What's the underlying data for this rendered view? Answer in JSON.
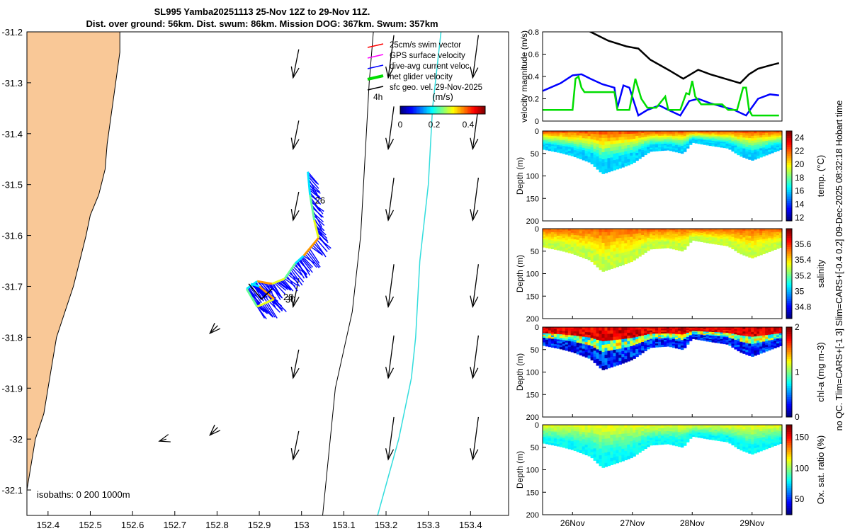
{
  "title": {
    "line1": "SL995 Yamba20251113 25-Nov 12Z to 29-Nov 11Z.",
    "line2": "Dist. over ground: 56km. Dist. swum: 86km. Mission DOG: 367km. Swum: 357km"
  },
  "side_note": "no QC. Tlim=CARS+[-1 3] Slim=CARS+[-0.4 0.2] 09-Dec-2025 08:32:18 Hobart time",
  "colors": {
    "land": "#f9c897",
    "coast": "#000000",
    "isobath_200": "#000000",
    "isobath_1000": "#33dddd",
    "dive_avg": "#0000ff",
    "net_glider": "#00dd00",
    "gps": "#ff00ff",
    "swim": "#ff0000"
  },
  "chart_data": [
    {
      "type": "map",
      "id": "track-map",
      "xlim": [
        152.35,
        153.49
      ],
      "ylim": [
        -32.15,
        -31.2
      ],
      "xticks": [
        152.4,
        152.5,
        152.6,
        152.7,
        152.8,
        152.9,
        153,
        153.1,
        153.2,
        153.3,
        153.4
      ],
      "yticks": [
        -31.2,
        -31.3,
        -31.4,
        -31.5,
        -31.6,
        -31.7,
        -31.8,
        -31.9,
        -32,
        -32.1
      ],
      "legend": {
        "location": "top-right",
        "entries": [
          {
            "label": "25cm/s swim vector",
            "color": "#ff0000"
          },
          {
            "label": "GPS surface velocity",
            "color": "#ff00ff"
          },
          {
            "label": "dive-avg current veloc.",
            "color": "#0000ff"
          },
          {
            "label": "net glider velocity",
            "color": "#00dd00"
          },
          {
            "label": "sfc geo. vel. 29-Nov-2025",
            "color": "#000000"
          }
        ],
        "scale_label": "4h"
      },
      "colorbar": {
        "label": "(m/s)",
        "ticks": [
          "0",
          "0.2",
          "0.4"
        ],
        "range": [
          0,
          0.5
        ]
      },
      "isobath_label": "isobaths: 0   200  1000m",
      "day_labels": [
        {
          "text": "26",
          "lon": 153.015,
          "lat": -31.53
        },
        {
          "text": "28",
          "lon": 152.94,
          "lat": -31.72
        },
        {
          "text": "30",
          "lon": 152.945,
          "lat": -31.725
        }
      ],
      "glider_track": [
        [
          153.015,
          -31.475
        ],
        [
          153.02,
          -31.52
        ],
        [
          153.03,
          -31.57
        ],
        [
          153.04,
          -31.605
        ],
        [
          153.005,
          -31.64
        ],
        [
          152.985,
          -31.655
        ],
        [
          152.96,
          -31.685
        ],
        [
          152.93,
          -31.695
        ],
        [
          152.895,
          -31.69
        ],
        [
          152.87,
          -31.705
        ],
        [
          152.895,
          -31.74
        ],
        [
          152.935,
          -31.725
        ],
        [
          152.9,
          -31.7
        ],
        [
          152.88,
          -31.695
        ]
      ]
    },
    {
      "type": "line",
      "id": "velocity-magnitude",
      "title": "",
      "xlabel": "",
      "ylabel": "velocity magnitude (m/s)",
      "xlim": [
        25.5,
        29.5
      ],
      "ylim": [
        0,
        0.8
      ],
      "yticks": [
        0,
        0.2,
        0.4,
        0.6,
        0.8
      ],
      "series": [
        {
          "name": "sfc geo. vel.",
          "color": "#000000",
          "x": [
            26.0,
            26.3,
            26.6,
            26.9,
            27.1,
            27.3,
            27.6,
            27.85,
            28.1,
            28.3,
            28.55,
            28.8,
            28.95,
            29.1,
            29.3,
            29.45
          ],
          "y": [
            0.88,
            0.8,
            0.72,
            0.67,
            0.65,
            0.55,
            0.46,
            0.38,
            0.46,
            0.42,
            0.38,
            0.34,
            0.42,
            0.47,
            0.5,
            0.52
          ]
        },
        {
          "name": "dive-avg current veloc.",
          "color": "#0000ff",
          "x": [
            25.5,
            25.8,
            26.0,
            26.15,
            26.3,
            26.5,
            26.7,
            26.75,
            26.85,
            26.95,
            27.1,
            27.25,
            27.45,
            27.6,
            27.8,
            27.95,
            28.1,
            28.3,
            28.5,
            28.7,
            28.9,
            29.1,
            29.3,
            29.45
          ],
          "y": [
            0.27,
            0.34,
            0.41,
            0.42,
            0.38,
            0.33,
            0.3,
            0.12,
            0.32,
            0.3,
            0.05,
            0.1,
            0.14,
            0.1,
            0.05,
            0.18,
            0.2,
            0.16,
            0.13,
            0.1,
            0.05,
            0.2,
            0.24,
            0.23
          ]
        },
        {
          "name": "net glider velocity",
          "color": "#00dd00",
          "x": [
            25.5,
            25.8,
            26.0,
            26.05,
            26.1,
            26.15,
            26.2,
            26.35,
            26.55,
            26.7,
            26.75,
            26.8,
            26.95,
            27.05,
            27.15,
            27.25,
            27.4,
            27.55,
            27.6,
            27.65,
            27.8,
            27.9,
            27.95,
            28.0,
            28.05,
            28.15,
            28.3,
            28.5,
            28.6,
            28.75,
            28.85,
            28.9,
            28.95,
            29.0,
            29.3,
            29.45
          ],
          "y": [
            0.1,
            0.1,
            0.1,
            0.38,
            0.4,
            0.3,
            0.26,
            0.26,
            0.26,
            0.26,
            0.1,
            0.1,
            0.1,
            0.38,
            0.2,
            0.12,
            0.12,
            0.22,
            0.1,
            0.1,
            0.1,
            0.25,
            0.24,
            0.36,
            0.22,
            0.15,
            0.15,
            0.15,
            0.1,
            0.1,
            0.3,
            0.3,
            0.1,
            0.05,
            0.05,
            0.05
          ]
        }
      ]
    },
    {
      "type": "heatmap",
      "id": "temperature-section",
      "ylabel": "Depth (m)",
      "colorbar_label": "temp. (°C)",
      "colorbar_ticks": [
        12,
        14,
        16,
        18,
        20,
        22,
        24
      ],
      "crange": [
        11.5,
        25
      ],
      "ylim": [
        0,
        200
      ],
      "yticks": [
        0,
        50,
        100,
        150,
        200
      ],
      "xlim": [
        25.5,
        29.5
      ],
      "xticks": [
        "26Nov",
        "27Nov",
        "28Nov",
        "29Nov"
      ],
      "profile_days": [
        25.5,
        25.8,
        26.0,
        26.3,
        26.5,
        26.8,
        27.0,
        27.3,
        27.6,
        27.85,
        28.0,
        28.3,
        28.6,
        28.8,
        29.0,
        29.3,
        29.5
      ],
      "profile_depths": [
        40,
        48,
        55,
        70,
        95,
        82,
        72,
        45,
        42,
        50,
        25,
        32,
        38,
        55,
        65,
        50,
        40
      ],
      "surface_value": 22.5,
      "deep_value": 16.0
    },
    {
      "type": "heatmap",
      "id": "salinity-section",
      "ylabel": "Depth (m)",
      "colorbar_label": "salinity",
      "colorbar_ticks": [
        34.8,
        35,
        35.2,
        35.4,
        35.6
      ],
      "crange": [
        34.65,
        35.8
      ],
      "ylim": [
        0,
        200
      ],
      "yticks": [
        0,
        50,
        100,
        150,
        200
      ],
      "xlim": [
        25.5,
        29.5
      ],
      "xticks": [
        "26Nov",
        "27Nov",
        "28Nov",
        "29Nov"
      ],
      "profile_days": [
        25.5,
        25.8,
        26.0,
        26.3,
        26.5,
        26.8,
        27.0,
        27.3,
        27.6,
        27.85,
        28.0,
        28.3,
        28.6,
        28.8,
        29.0,
        29.3,
        29.5
      ],
      "profile_depths": [
        40,
        48,
        55,
        70,
        95,
        82,
        72,
        45,
        42,
        50,
        25,
        32,
        38,
        55,
        65,
        50,
        40
      ],
      "surface_value": 35.55,
      "deep_value": 35.3
    },
    {
      "type": "heatmap",
      "id": "chla-section",
      "ylabel": "Depth (m)",
      "colorbar_label": "chl-a (mg m-3)",
      "colorbar_ticks": [
        0,
        1,
        2
      ],
      "crange": [
        0,
        2
      ],
      "ylim": [
        0,
        200
      ],
      "yticks": [
        0,
        50,
        100,
        150,
        200
      ],
      "xlim": [
        25.5,
        29.5
      ],
      "xticks": [
        "26Nov",
        "27Nov",
        "28Nov",
        "29Nov"
      ],
      "profile_days": [
        25.5,
        25.8,
        26.0,
        26.3,
        26.5,
        26.8,
        27.0,
        27.3,
        27.6,
        27.85,
        28.0,
        28.3,
        28.6,
        28.8,
        29.0,
        29.3,
        29.5
      ],
      "profile_depths": [
        40,
        48,
        55,
        70,
        95,
        82,
        72,
        45,
        42,
        50,
        25,
        32,
        38,
        55,
        65,
        50,
        40
      ],
      "surface_value": 1.95,
      "deep_value": 0.3
    },
    {
      "type": "heatmap",
      "id": "oxygen-section",
      "ylabel": "Depth (m)",
      "colorbar_label": "Ox. sat. ratio (%)",
      "colorbar_ticks": [
        50,
        100,
        150
      ],
      "crange": [
        25,
        170
      ],
      "ylim": [
        0,
        200
      ],
      "yticks": [
        0,
        50,
        100,
        150,
        200
      ],
      "xlim": [
        25.5,
        29.5
      ],
      "xticks": [
        "26Nov",
        "27Nov",
        "28Nov",
        "29Nov"
      ],
      "profile_days": [
        25.5,
        25.8,
        26.0,
        26.3,
        26.5,
        26.8,
        27.0,
        27.3,
        27.6,
        27.85,
        28.0,
        28.3,
        28.6,
        28.8,
        29.0,
        29.3,
        29.5
      ],
      "profile_depths": [
        40,
        48,
        55,
        70,
        95,
        82,
        72,
        45,
        42,
        50,
        25,
        32,
        38,
        55,
        65,
        50,
        40
      ],
      "surface_value": 115,
      "deep_value": 80
    }
  ]
}
